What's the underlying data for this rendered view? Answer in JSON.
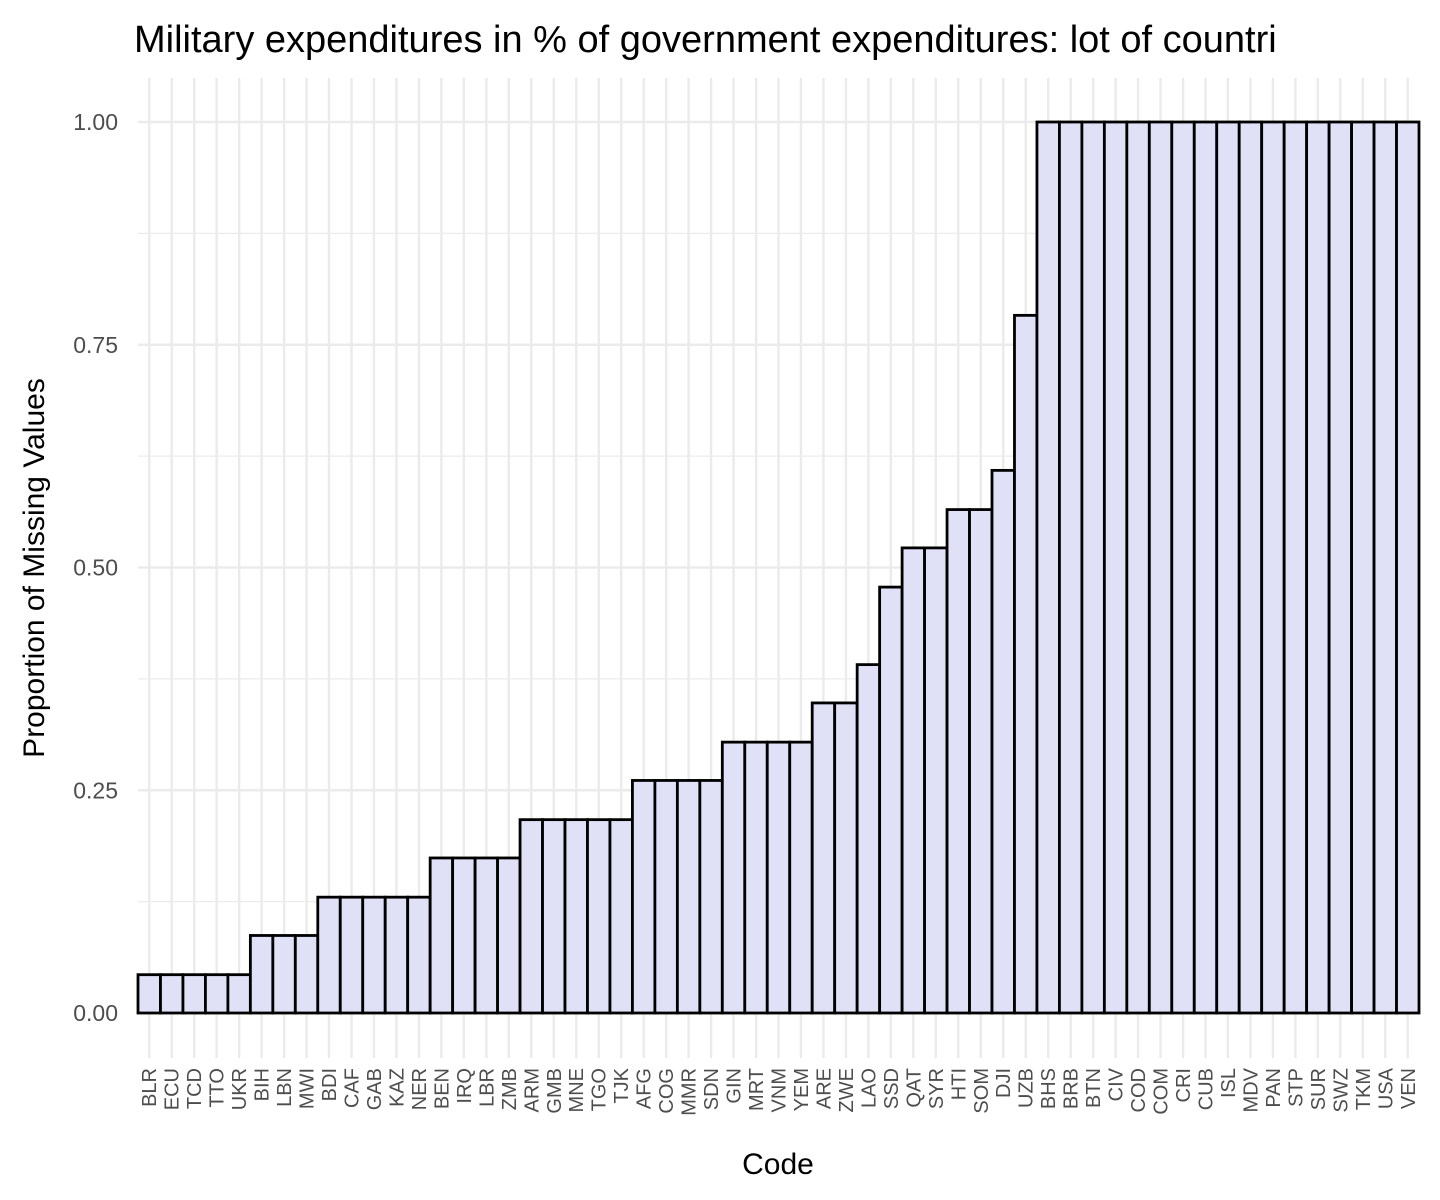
{
  "chart_data": {
    "type": "bar",
    "title": "Military expenditures in % of government expenditures: lot of countri",
    "xlabel": "Code",
    "ylabel": "Proportion of Missing Values",
    "ylim": [
      0,
      1.02
    ],
    "yticks": [
      "0.00",
      "0.25",
      "0.50",
      "0.75",
      "1.00"
    ],
    "grid": true,
    "legend": "none",
    "colors": {
      "bar_fill": "#e0e0f7",
      "bar_stroke": "#000000",
      "grid": "#ebebeb"
    },
    "categories": [
      "BLR",
      "ECU",
      "TCD",
      "TTO",
      "UKR",
      "BIH",
      "LBN",
      "MWI",
      "BDI",
      "CAF",
      "GAB",
      "KAZ",
      "NER",
      "BEN",
      "IRQ",
      "LBR",
      "ZMB",
      "ARM",
      "GMB",
      "MNE",
      "TGO",
      "TJK",
      "AFG",
      "COG",
      "MMR",
      "SDN",
      "GIN",
      "MRT",
      "VNM",
      "YEM",
      "ARE",
      "ZWE",
      "LAO",
      "SSD",
      "QAT",
      "SYR",
      "HTI",
      "SOM",
      "DJI",
      "UZB",
      "BHS",
      "BRB",
      "BTN",
      "CIV",
      "COD",
      "COM",
      "CRI",
      "CUB",
      "ISL",
      "MDV",
      "PAN",
      "STP",
      "SUR",
      "SWZ",
      "TKM",
      "USA",
      "VEN"
    ],
    "values": [
      0.043,
      0.043,
      0.043,
      0.043,
      0.043,
      0.087,
      0.087,
      0.087,
      0.13,
      0.13,
      0.13,
      0.13,
      0.13,
      0.174,
      0.174,
      0.174,
      0.174,
      0.217,
      0.217,
      0.217,
      0.217,
      0.217,
      0.261,
      0.261,
      0.261,
      0.261,
      0.304,
      0.304,
      0.304,
      0.304,
      0.348,
      0.348,
      0.391,
      0.478,
      0.522,
      0.522,
      0.565,
      0.565,
      0.609,
      0.783,
      1,
      1,
      1,
      1,
      1,
      1,
      1,
      1,
      1,
      1,
      1,
      1,
      1,
      1,
      1,
      1,
      1
    ]
  }
}
